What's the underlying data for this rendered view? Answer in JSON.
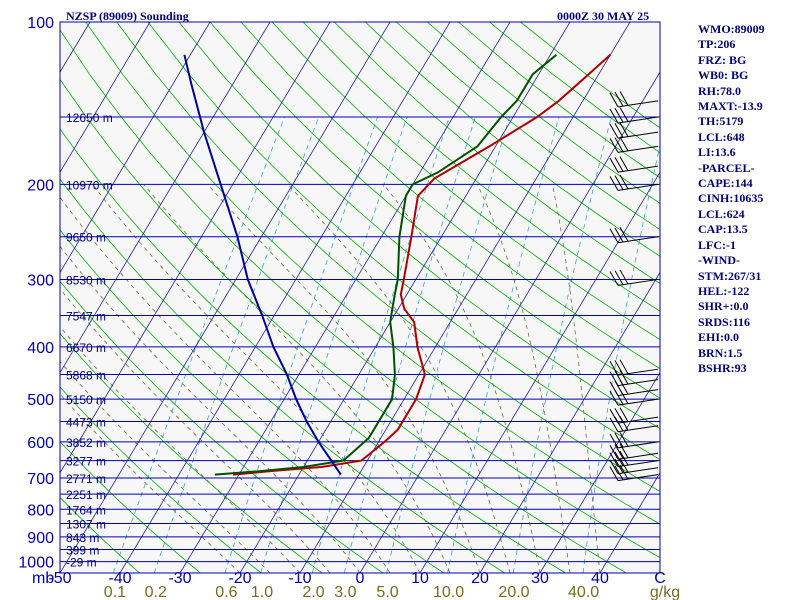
{
  "chart_data": {
    "type": "skew-t log-p sounding",
    "title": "NZSP (89009) Sounding",
    "valid_time": "0000Z 30 MAY 25",
    "pressure_axis_unit": "mb",
    "pressure_ticks": [
      "100",
      "200",
      "300",
      "400",
      "500",
      "600",
      "700",
      "800",
      "900",
      "1000"
    ],
    "pressure_range_mb": [
      100,
      1050
    ],
    "temperature_ticks": [
      "-50",
      "-40",
      "-30",
      "-20",
      "-10",
      "0",
      "10",
      "20",
      "30",
      "40",
      "C"
    ],
    "temperature_range_c": [
      -50,
      50
    ],
    "mixing_ratio_unit": "g/kg",
    "mixing_ratio_ticks": [
      "0.1",
      "0.2",
      "0.6",
      "1.0",
      "2.0",
      "3.0",
      "5.0",
      "10.0",
      "20.0",
      "40.0"
    ],
    "height_labels": [
      {
        "p": 150,
        "label": "12650 m"
      },
      {
        "p": 200,
        "label": "10970 m"
      },
      {
        "p": 250,
        "label": "9650 m"
      },
      {
        "p": 300,
        "label": "8530 m"
      },
      {
        "p": 350,
        "label": "7547 m"
      },
      {
        "p": 400,
        "label": "6670 m"
      },
      {
        "p": 450,
        "label": "5868 m"
      },
      {
        "p": 500,
        "label": "5150 m"
      },
      {
        "p": 550,
        "label": "4473 m"
      },
      {
        "p": 600,
        "label": "3852 m"
      },
      {
        "p": 650,
        "label": "3277 m"
      },
      {
        "p": 700,
        "label": "2771 m"
      },
      {
        "p": 750,
        "label": "2251 m"
      },
      {
        "p": 800,
        "label": "1764 m"
      },
      {
        "p": 850,
        "label": "1307 m"
      },
      {
        "p": 900,
        "label": "843 m"
      },
      {
        "p": 950,
        "label": "399 m"
      },
      {
        "p": 1000,
        "label": "-29 m"
      }
    ],
    "series": [
      {
        "role": "temperature",
        "color": "#b00000",
        "points": [
          {
            "p": 690,
            "t": -31
          },
          {
            "p": 678,
            "t": -24
          },
          {
            "p": 668,
            "t": -17
          },
          {
            "p": 650,
            "t": -11
          },
          {
            "p": 625,
            "t": -10
          },
          {
            "p": 600,
            "t": -9
          },
          {
            "p": 570,
            "t": -8
          },
          {
            "p": 530,
            "t": -8
          },
          {
            "p": 500,
            "t": -8
          },
          {
            "p": 450,
            "t": -9
          },
          {
            "p": 400,
            "t": -13
          },
          {
            "p": 360,
            "t": -16
          },
          {
            "p": 340,
            "t": -19
          },
          {
            "p": 320,
            "t": -21
          },
          {
            "p": 300,
            "t": -22
          },
          {
            "p": 250,
            "t": -25
          },
          {
            "p": 210,
            "t": -28
          },
          {
            "p": 195,
            "t": -27
          },
          {
            "p": 170,
            "t": -21
          },
          {
            "p": 150,
            "t": -16
          },
          {
            "p": 140,
            "t": -14
          },
          {
            "p": 127,
            "t": -12
          },
          {
            "p": 115,
            "t": -10
          }
        ]
      },
      {
        "role": "dewpoint",
        "color": "#005000",
        "points": [
          {
            "p": 690,
            "t": -34
          },
          {
            "p": 680,
            "t": -27
          },
          {
            "p": 668,
            "t": -20
          },
          {
            "p": 650,
            "t": -14
          },
          {
            "p": 620,
            "t": -13
          },
          {
            "p": 590,
            "t": -12
          },
          {
            "p": 560,
            "t": -12
          },
          {
            "p": 520,
            "t": -12
          },
          {
            "p": 500,
            "t": -12
          },
          {
            "p": 450,
            "t": -14
          },
          {
            "p": 400,
            "t": -17
          },
          {
            "p": 360,
            "t": -20
          },
          {
            "p": 340,
            "t": -21
          },
          {
            "p": 320,
            "t": -22
          },
          {
            "p": 300,
            "t": -23
          },
          {
            "p": 250,
            "t": -27
          },
          {
            "p": 210,
            "t": -30
          },
          {
            "p": 200,
            "t": -30
          },
          {
            "p": 190,
            "t": -27
          },
          {
            "p": 170,
            "t": -23
          },
          {
            "p": 150,
            "t": -22
          },
          {
            "p": 140,
            "t": -21
          },
          {
            "p": 125,
            "t": -21
          },
          {
            "p": 115,
            "t": -19
          }
        ]
      },
      {
        "role": "parcel",
        "color": "#0000a0",
        "points": [
          {
            "p": 690,
            "t": -13
          },
          {
            "p": 650,
            "t": -16
          },
          {
            "p": 600,
            "t": -20
          },
          {
            "p": 550,
            "t": -24
          },
          {
            "p": 500,
            "t": -28
          },
          {
            "p": 450,
            "t": -32
          },
          {
            "p": 400,
            "t": -37
          },
          {
            "p": 350,
            "t": -42
          },
          {
            "p": 300,
            "t": -48
          },
          {
            "p": 250,
            "t": -54
          },
          {
            "p": 200,
            "t": -62
          },
          {
            "p": 160,
            "t": -70
          },
          {
            "p": 130,
            "t": -77
          },
          {
            "p": 115,
            "t": -81
          }
        ]
      }
    ],
    "wind_barbs_levels_mb": [
      140,
      150,
      160,
      170,
      185,
      200,
      250,
      300,
      440,
      460,
      480,
      500,
      540,
      560,
      600,
      630,
      650,
      670,
      690
    ],
    "grid": true
  },
  "indices": [
    "WMO:89009",
    "TP:206",
    "FRZ: BG",
    "WB0: BG",
    "RH:78.0",
    "MAXT:-13.9",
    "TH:5179",
    "LCL:648",
    "LI:13.6",
    "-PARCEL-",
    "CAPE:144",
    "CINH:10635",
    "LCL:624",
    "CAP:13.5",
    "LFC:-1",
    "-WIND-",
    "STM:267/31",
    "HEL:-122",
    "SHR+:0.0",
    "SRDS:116",
    "EHI:0.0",
    "BRN:1.5",
    "BSHR:93"
  ],
  "colors": {
    "isobar": "#0000b0",
    "isotherm": "#2020a0",
    "dry_adiabat": "#00b000",
    "moist_adiabat": "#6a6a3a",
    "mixing_ratio": "#3aa0d0",
    "axis_label": "#0000b0",
    "mixing_label": "#7a6a20",
    "header": "#00007a"
  }
}
